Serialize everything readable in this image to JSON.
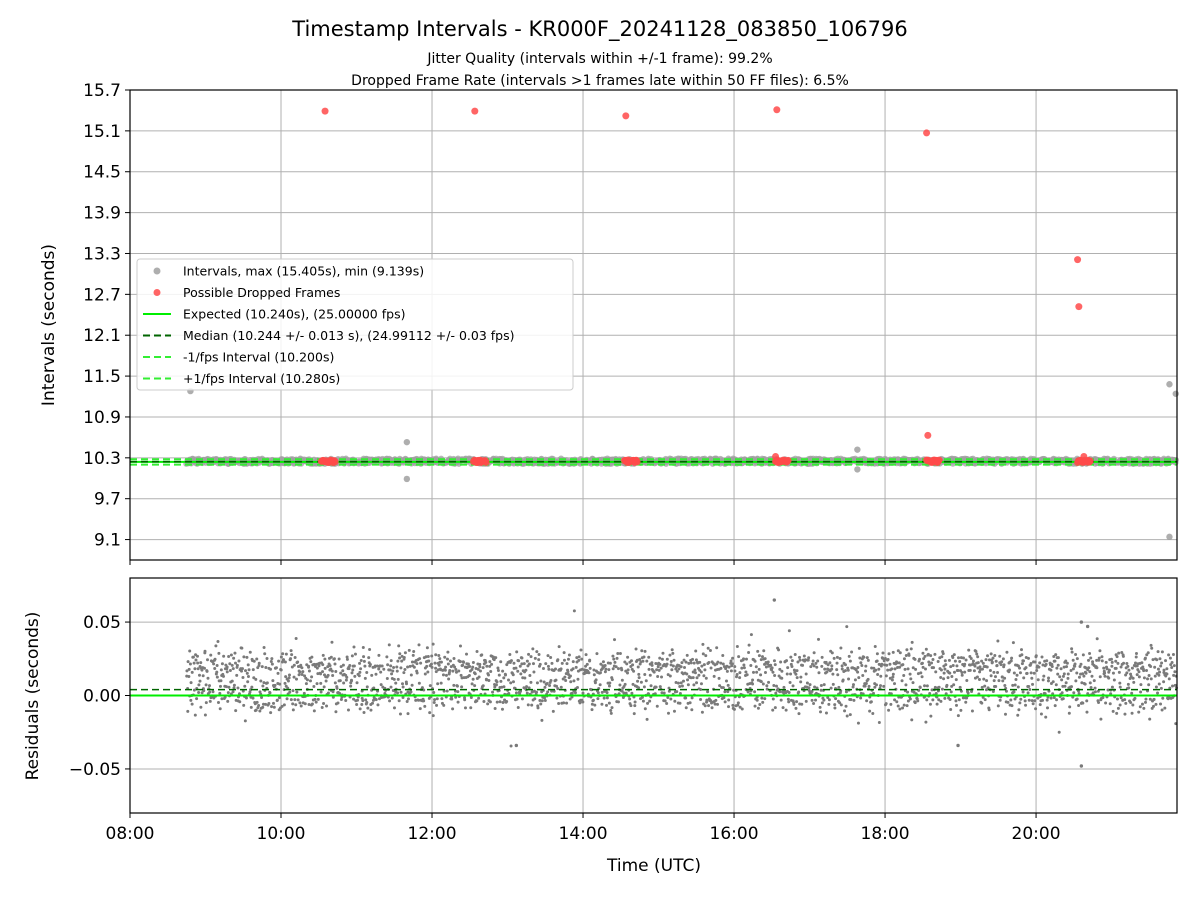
{
  "chart_data": [
    {
      "type": "scatter",
      "title": "Timestamp Intervals - KR000F_20241128_083850_106796",
      "subtitle_lines": [
        "Jitter Quality (intervals within +/-1 frame): 99.2%",
        "Dropped Frame Rate (intervals >1 frames late within 50 FF files): 6.5%"
      ],
      "ylabel": "Intervals (seconds)",
      "ylim": [
        8.8,
        15.7
      ],
      "yticks": [
        9.1,
        9.7,
        10.3,
        10.9,
        11.5,
        12.1,
        12.7,
        13.3,
        13.9,
        14.5,
        15.1,
        15.7
      ],
      "ytick_labels": [
        "9.1",
        "9.7",
        "10.3",
        "10.9",
        "11.5",
        "12.1",
        "12.7",
        "13.3",
        "13.9",
        "14.5",
        "15.1",
        "15.7"
      ],
      "grid": true,
      "legend_position": "center-left",
      "legend": [
        {
          "label": "Intervals, max (15.405s), min (9.139s)",
          "kind": "marker",
          "color": "#a0a0a0"
        },
        {
          "label": "Possible Dropped Frames",
          "kind": "marker",
          "color": "#ff4a4a"
        },
        {
          "label": "Expected (10.240s), (25.00000 fps)",
          "kind": "solid",
          "color": "#00ee00"
        },
        {
          "label": "Median (10.244 +/- 0.013 s), (24.99112 +/- 0.03 fps)",
          "kind": "dashed",
          "color": "#006400"
        },
        {
          "label": "-1/fps Interval (10.200s)",
          "kind": "dashed",
          "color": "#33ee33"
        },
        {
          "label": "+1/fps Interval (10.280s)",
          "kind": "dashed",
          "color": "#33ee33"
        }
      ],
      "reference_lines": {
        "expected": 10.24,
        "median": 10.244,
        "minus_1fps": 10.2,
        "plus_1fps": 10.28
      },
      "series": [
        {
          "role": "intervals",
          "color": "#a0a0a0",
          "band": {
            "x_start": "08:45",
            "x_end": "21:52",
            "y_center": 10.25,
            "y_spread": 0.04
          },
          "outliers": [
            {
              "x": "08:48",
              "y": 11.28
            },
            {
              "x": "11:40",
              "y": 10.53
            },
            {
              "x": "11:40",
              "y": 9.99
            },
            {
              "x": "17:38",
              "y": 10.42
            },
            {
              "x": "17:38",
              "y": 10.13
            },
            {
              "x": "21:46",
              "y": 11.38
            },
            {
              "x": "21:51",
              "y": 11.24
            },
            {
              "x": "21:46",
              "y": 9.14
            }
          ]
        },
        {
          "role": "dropped_frames",
          "color": "#ff4a4a",
          "clusters": [
            {
              "x_start": "10:32",
              "x_end": "10:43",
              "y": 10.25
            },
            {
              "x_start": "12:33",
              "x_end": "12:43",
              "y": 10.25
            },
            {
              "x_start": "14:33",
              "x_end": "14:43",
              "y": 10.25
            },
            {
              "x_start": "16:33",
              "x_end": "16:43",
              "y": 10.25
            },
            {
              "x_start": "18:33",
              "x_end": "18:43",
              "y": 10.25
            },
            {
              "x_start": "20:33",
              "x_end": "20:43",
              "y": 10.25
            }
          ],
          "points": [
            {
              "x": "10:35",
              "y": 15.39
            },
            {
              "x": "12:34",
              "y": 15.39
            },
            {
              "x": "14:34",
              "y": 15.32
            },
            {
              "x": "16:34",
              "y": 15.41
            },
            {
              "x": "18:33",
              "y": 15.07
            },
            {
              "x": "20:33",
              "y": 13.21
            },
            {
              "x": "20:34",
              "y": 12.52
            },
            {
              "x": "18:34",
              "y": 10.63
            },
            {
              "x": "16:33",
              "y": 10.32
            },
            {
              "x": "20:38",
              "y": 10.32
            }
          ]
        }
      ]
    },
    {
      "type": "scatter",
      "xlabel": "Time (UTC)",
      "ylabel": "Residuals (seconds)",
      "xlim": [
        "08:00",
        "21:52"
      ],
      "xticks": [
        "08:00",
        "10:00",
        "12:00",
        "14:00",
        "16:00",
        "18:00",
        "20:00"
      ],
      "ylim": [
        -0.08,
        0.08
      ],
      "yticks": [
        -0.05,
        0.0,
        0.05
      ],
      "ytick_labels": [
        "−0.05",
        "0.00",
        "0.05"
      ],
      "grid": true,
      "reference_lines": {
        "zero": 0.0,
        "median_offset": 0.004
      },
      "series": [
        {
          "role": "residuals",
          "color": "#7a7a7a",
          "bands": [
            {
              "y_center": 0.02,
              "y_spread": 0.01
            },
            {
              "y_center": 0.0,
              "y_spread": 0.011
            }
          ],
          "x_start": "08:45",
          "x_end": "21:52",
          "outliers": [
            {
              "x": "16:32",
              "y": 0.065
            },
            {
              "x": "20:36",
              "y": 0.05
            },
            {
              "x": "20:41",
              "y": 0.047
            },
            {
              "x": "20:36",
              "y": -0.048
            },
            {
              "x": "13:07",
              "y": -0.034
            },
            {
              "x": "18:58",
              "y": -0.034
            }
          ]
        }
      ]
    }
  ]
}
